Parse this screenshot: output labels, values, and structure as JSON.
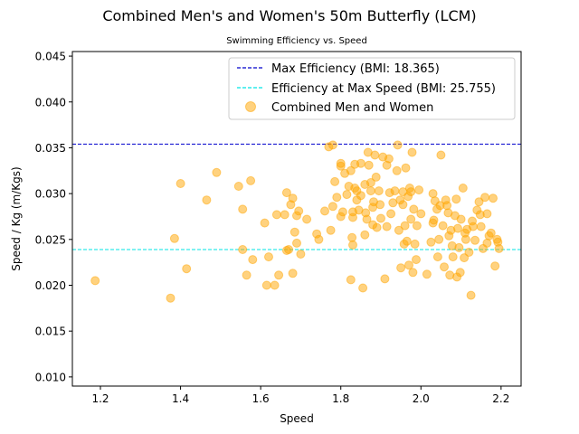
{
  "chart_data": {
    "type": "scatter",
    "title": "Combined Men's and Women's 50m Butterfly (LCM)",
    "subtitle": "Swimming Efficiency vs. Speed",
    "xlabel": "Speed",
    "ylabel": "Speed / Kg (m/Kgs)",
    "xlim": [
      1.13,
      2.25
    ],
    "ylim": [
      0.009,
      0.0455
    ],
    "xticks": [
      "1.2",
      "1.4",
      "1.6",
      "1.8",
      "2.0",
      "2.2"
    ],
    "yticks": [
      "0.010",
      "0.015",
      "0.020",
      "0.025",
      "0.030",
      "0.035",
      "0.040",
      "0.045"
    ],
    "grid": false,
    "legend_position": "top-right",
    "lines": [
      {
        "name": "Max Efficiency (BMI: 18.365)",
        "y": 0.0354,
        "color": "#0000cc",
        "style": "dashed"
      },
      {
        "name": "Efficiency at Max Speed (BMI: 25.755)",
        "y": 0.0239,
        "color": "#00e5e5",
        "style": "dashed"
      }
    ],
    "series": [
      {
        "name": "Combined Men and Women",
        "color": "#ffa500",
        "points": [
          [
            1.187,
            0.0205
          ],
          [
            1.375,
            0.0186
          ],
          [
            1.385,
            0.0251
          ],
          [
            1.4,
            0.0311
          ],
          [
            1.415,
            0.0218
          ],
          [
            1.465,
            0.0293
          ],
          [
            1.49,
            0.0323
          ],
          [
            1.545,
            0.0308
          ],
          [
            1.555,
            0.0283
          ],
          [
            1.555,
            0.0239
          ],
          [
            1.565,
            0.0211
          ],
          [
            1.575,
            0.0314
          ],
          [
            1.58,
            0.0228
          ],
          [
            1.61,
            0.0268
          ],
          [
            1.615,
            0.02
          ],
          [
            1.62,
            0.0231
          ],
          [
            1.635,
            0.02
          ],
          [
            1.64,
            0.0277
          ],
          [
            1.645,
            0.0211
          ],
          [
            1.66,
            0.0277
          ],
          [
            1.665,
            0.0301
          ],
          [
            1.665,
            0.0238
          ],
          [
            1.67,
            0.0239
          ],
          [
            1.675,
            0.0288
          ],
          [
            1.68,
            0.0295
          ],
          [
            1.68,
            0.0213
          ],
          [
            1.685,
            0.0258
          ],
          [
            1.69,
            0.0246
          ],
          [
            1.69,
            0.0276
          ],
          [
            1.695,
            0.0281
          ],
          [
            1.7,
            0.0234
          ],
          [
            1.715,
            0.0272
          ],
          [
            1.74,
            0.0256
          ],
          [
            1.745,
            0.025
          ],
          [
            1.76,
            0.0281
          ],
          [
            1.77,
            0.0351
          ],
          [
            1.78,
            0.0353
          ],
          [
            1.775,
            0.026
          ],
          [
            1.78,
            0.0286
          ],
          [
            1.785,
            0.0313
          ],
          [
            1.79,
            0.0296
          ],
          [
            1.8,
            0.033
          ],
          [
            1.8,
            0.0275
          ],
          [
            1.805,
            0.028
          ],
          [
            1.81,
            0.0322
          ],
          [
            1.815,
            0.0299
          ],
          [
            1.82,
            0.0308
          ],
          [
            1.825,
            0.0325
          ],
          [
            1.825,
            0.0206
          ],
          [
            1.828,
            0.0252
          ],
          [
            1.83,
            0.0244
          ],
          [
            1.83,
            0.028
          ],
          [
            1.83,
            0.0274
          ],
          [
            1.835,
            0.0332
          ],
          [
            1.84,
            0.0303
          ],
          [
            1.84,
            0.0293
          ],
          [
            1.845,
            0.0282
          ],
          [
            1.85,
            0.0298
          ],
          [
            1.85,
            0.0333
          ],
          [
            1.855,
            0.0197
          ],
          [
            1.86,
            0.0255
          ],
          [
            1.86,
            0.031
          ],
          [
            1.862,
            0.0279
          ],
          [
            1.865,
            0.0272
          ],
          [
            1.868,
            0.0345
          ],
          [
            1.87,
            0.0331
          ],
          [
            1.875,
            0.0312
          ],
          [
            1.875,
            0.0303
          ],
          [
            1.88,
            0.0266
          ],
          [
            1.88,
            0.0285
          ],
          [
            1.882,
            0.0291
          ],
          [
            1.885,
            0.0342
          ],
          [
            1.888,
            0.0318
          ],
          [
            1.89,
            0.0263
          ],
          [
            1.895,
            0.0303
          ],
          [
            1.898,
            0.0288
          ],
          [
            1.9,
            0.0273
          ],
          [
            1.905,
            0.034
          ],
          [
            1.91,
            0.0207
          ],
          [
            1.915,
            0.0264
          ],
          [
            1.915,
            0.0331
          ],
          [
            1.92,
            0.0338
          ],
          [
            1.922,
            0.0301
          ],
          [
            1.925,
            0.0278
          ],
          [
            1.93,
            0.029
          ],
          [
            1.935,
            0.0303
          ],
          [
            1.94,
            0.0325
          ],
          [
            1.942,
            0.0353
          ],
          [
            1.945,
            0.026
          ],
          [
            1.948,
            0.0293
          ],
          [
            1.95,
            0.0219
          ],
          [
            1.955,
            0.0288
          ],
          [
            1.958,
            0.0245
          ],
          [
            1.96,
            0.0265
          ],
          [
            1.962,
            0.0328
          ],
          [
            1.965,
            0.0248
          ],
          [
            1.968,
            0.0297
          ],
          [
            1.97,
            0.0222
          ],
          [
            1.972,
            0.0306
          ],
          [
            1.975,
            0.0302
          ],
          [
            1.975,
            0.0272
          ],
          [
            1.978,
            0.0345
          ],
          [
            1.98,
            0.0214
          ],
          [
            1.982,
            0.0283
          ],
          [
            1.985,
            0.0245
          ],
          [
            1.988,
            0.0228
          ],
          [
            1.99,
            0.0265
          ],
          [
            1.995,
            0.0304
          ],
          [
            2.0,
            0.0278
          ],
          [
            2.015,
            0.0212
          ],
          [
            2.025,
            0.0247
          ],
          [
            2.03,
            0.03
          ],
          [
            2.032,
            0.0271
          ],
          [
            2.035,
            0.0292
          ],
          [
            2.04,
            0.0283
          ],
          [
            2.042,
            0.0231
          ],
          [
            2.045,
            0.025
          ],
          [
            2.048,
            0.0287
          ],
          [
            2.05,
            0.0342
          ],
          [
            2.055,
            0.0265
          ],
          [
            2.058,
            0.022
          ],
          [
            2.062,
            0.0293
          ],
          [
            2.065,
            0.0287
          ],
          [
            2.068,
            0.0279
          ],
          [
            2.07,
            0.0254
          ],
          [
            2.072,
            0.0211
          ],
          [
            2.075,
            0.026
          ],
          [
            2.078,
            0.0243
          ],
          [
            2.08,
            0.0231
          ],
          [
            2.085,
            0.0276
          ],
          [
            2.088,
            0.0294
          ],
          [
            2.09,
            0.0209
          ],
          [
            2.092,
            0.0262
          ],
          [
            2.095,
            0.0241
          ],
          [
            2.098,
            0.0214
          ],
          [
            2.1,
            0.0272
          ],
          [
            2.105,
            0.0306
          ],
          [
            2.108,
            0.023
          ],
          [
            2.112,
            0.025
          ],
          [
            2.115,
            0.0261
          ],
          [
            2.12,
            0.0236
          ],
          [
            2.125,
            0.0189
          ],
          [
            2.128,
            0.027
          ],
          [
            2.13,
            0.0264
          ],
          [
            2.135,
            0.0249
          ],
          [
            2.14,
            0.0282
          ],
          [
            2.145,
            0.0291
          ],
          [
            2.148,
            0.0277
          ],
          [
            2.15,
            0.0264
          ],
          [
            2.155,
            0.024
          ],
          [
            2.16,
            0.0296
          ],
          [
            2.165,
            0.0246
          ],
          [
            2.17,
            0.0254
          ],
          [
            2.175,
            0.0257
          ],
          [
            2.18,
            0.0295
          ],
          [
            2.185,
            0.0221
          ],
          [
            2.19,
            0.025
          ],
          [
            2.192,
            0.0247
          ],
          [
            2.195,
            0.024
          ],
          [
            2.165,
            0.0278
          ],
          [
            2.11,
            0.0257
          ],
          [
            2.03,
            0.0268
          ],
          [
            1.955,
            0.0302
          ],
          [
            1.8,
            0.0333
          ],
          [
            1.835,
            0.0306
          ]
        ]
      }
    ]
  }
}
